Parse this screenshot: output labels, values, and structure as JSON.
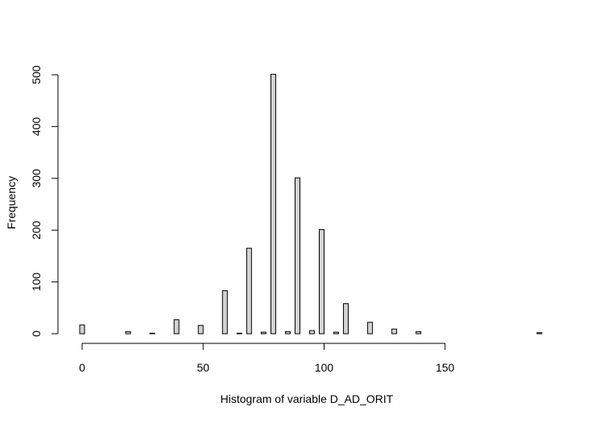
{
  "chart_data": {
    "type": "bar",
    "title": "",
    "xlabel": "Histogram of variable D_AD_ORIT",
    "ylabel": "Frequency",
    "xlim": [
      0,
      190
    ],
    "ylim": [
      0,
      500
    ],
    "x_ticks": [
      0,
      50,
      100,
      150
    ],
    "y_ticks": [
      0,
      100,
      200,
      300,
      400,
      500
    ],
    "bin_width": 1,
    "grid": false,
    "legend": "none",
    "bar_fill": "#d3d3d3",
    "bar_stroke": "#000000",
    "bins": [
      {
        "x": 0,
        "value": 17
      },
      {
        "x": 19,
        "value": 4
      },
      {
        "x": 29,
        "value": 1
      },
      {
        "x": 39,
        "value": 27
      },
      {
        "x": 49,
        "value": 16
      },
      {
        "x": 59,
        "value": 83
      },
      {
        "x": 65,
        "value": 1
      },
      {
        "x": 69,
        "value": 165
      },
      {
        "x": 75,
        "value": 3
      },
      {
        "x": 79,
        "value": 501
      },
      {
        "x": 85,
        "value": 4
      },
      {
        "x": 89,
        "value": 301
      },
      {
        "x": 95,
        "value": 6
      },
      {
        "x": 99,
        "value": 201
      },
      {
        "x": 105,
        "value": 3
      },
      {
        "x": 109,
        "value": 58
      },
      {
        "x": 119,
        "value": 22
      },
      {
        "x": 129,
        "value": 9
      },
      {
        "x": 139,
        "value": 4
      },
      {
        "x": 189,
        "value": 2
      }
    ]
  }
}
